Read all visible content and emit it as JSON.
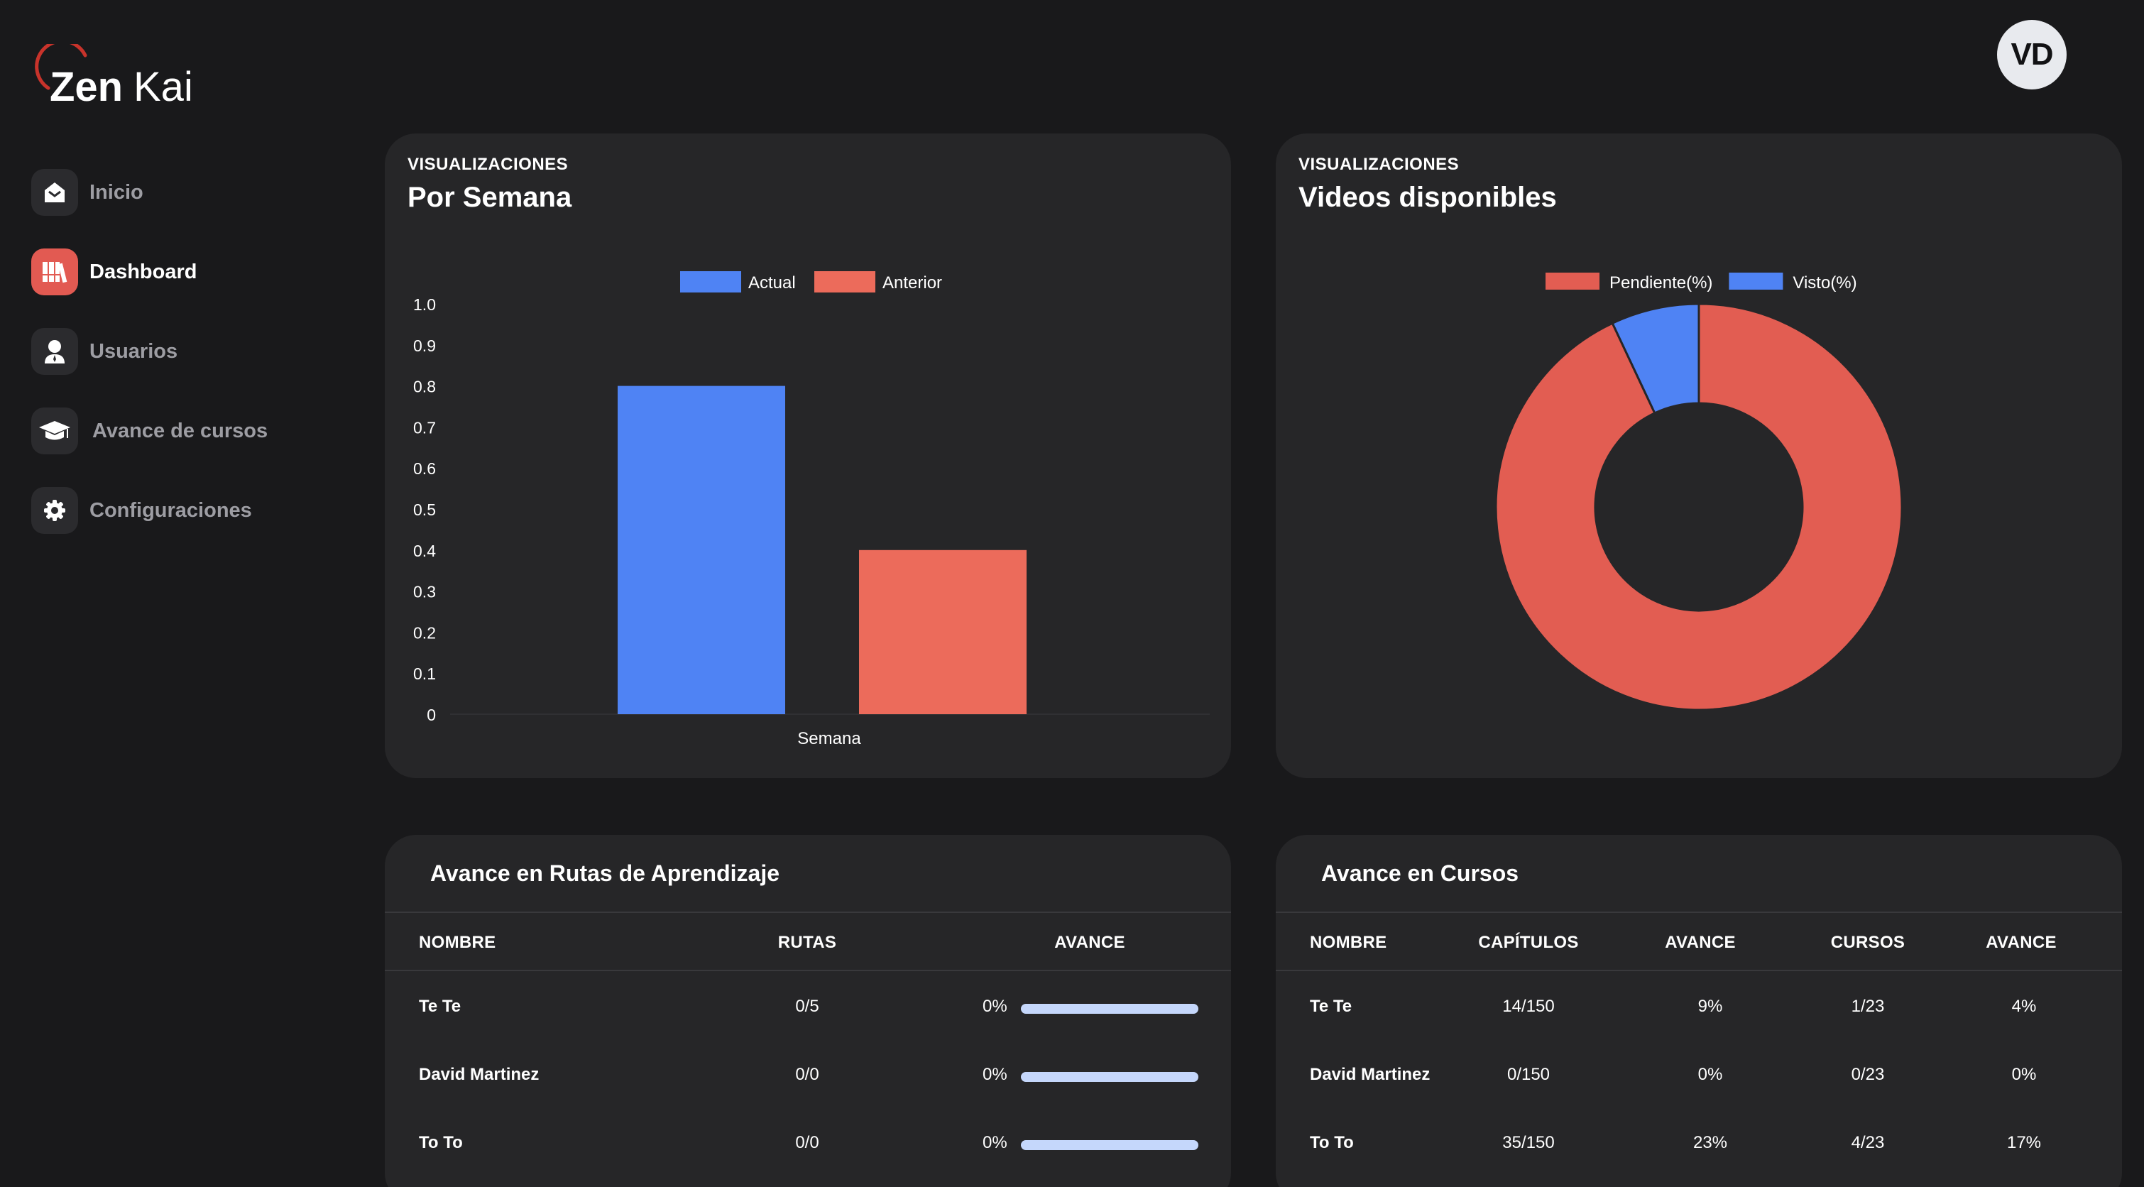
{
  "brand": {
    "name_part1": "Zen",
    "name_part2": "Kai",
    "accent": "#e25a52"
  },
  "user": {
    "initials": "VD"
  },
  "sidebar": {
    "items": [
      {
        "label": "Inicio",
        "icon": "home-icon",
        "active": false
      },
      {
        "label": "Dashboard",
        "icon": "books-icon",
        "active": true
      },
      {
        "label": "Usuarios",
        "icon": "user-icon",
        "active": false
      },
      {
        "label": "Avance de cursos",
        "icon": "graduation-cap-icon",
        "active": false
      },
      {
        "label": "Configuraciones",
        "icon": "gear-icon",
        "active": false
      }
    ]
  },
  "weekly_card": {
    "eyebrow": "VISUALIZACIONES",
    "title": "Por Semana"
  },
  "videos_card": {
    "eyebrow": "VISUALIZACIONES",
    "title": "Videos disponibles"
  },
  "chart_data": [
    {
      "type": "bar",
      "categories": [
        "Semana"
      ],
      "series": [
        {
          "name": "Actual",
          "values": [
            0.8
          ],
          "color": "#4f83f4"
        },
        {
          "name": "Anterior",
          "values": [
            0.4
          ],
          "color": "#ec6b5b"
        }
      ],
      "xlabel": "Semana",
      "ylabel": "",
      "ylim": [
        0,
        1.0
      ],
      "yticks": [
        "0",
        "0.1",
        "0.2",
        "0.3",
        "0.4",
        "0.5",
        "0.6",
        "0.7",
        "0.8",
        "0.9",
        "1.0"
      ],
      "legend": "top-center"
    },
    {
      "type": "pie",
      "donut": true,
      "slices": [
        {
          "name": "Pendiente(%)",
          "value": 93,
          "color": "#e25d52"
        },
        {
          "name": "Visto(%)",
          "value": 7,
          "color": "#4f83f4"
        }
      ],
      "legend": "top-center"
    }
  ],
  "routes_table": {
    "title": "Avance en Rutas de Aprendizaje",
    "headers": [
      "NOMBRE",
      "RUTAS",
      "AVANCE"
    ],
    "rows": [
      {
        "name": "Te Te",
        "rutas": "0/5",
        "avance": "0%",
        "progress": 0
      },
      {
        "name": "David Martinez",
        "rutas": "0/0",
        "avance": "0%",
        "progress": 0
      },
      {
        "name": "To To",
        "rutas": "0/0",
        "avance": "0%",
        "progress": 0
      }
    ]
  },
  "courses_table": {
    "title": "Avance en Cursos",
    "headers": [
      "NOMBRE",
      "CAPÍTULOS",
      "AVANCE",
      "CURSOS",
      "AVANCE"
    ],
    "rows": [
      {
        "name": "Te Te",
        "capitulos": "14/150",
        "avance1": "9%",
        "cursos": "1/23",
        "avance2": "4%"
      },
      {
        "name": "David Martinez",
        "capitulos": "0/150",
        "avance1": "0%",
        "cursos": "0/23",
        "avance2": "0%"
      },
      {
        "name": "To To",
        "capitulos": "35/150",
        "avance1": "23%",
        "cursos": "4/23",
        "avance2": "17%"
      }
    ]
  }
}
